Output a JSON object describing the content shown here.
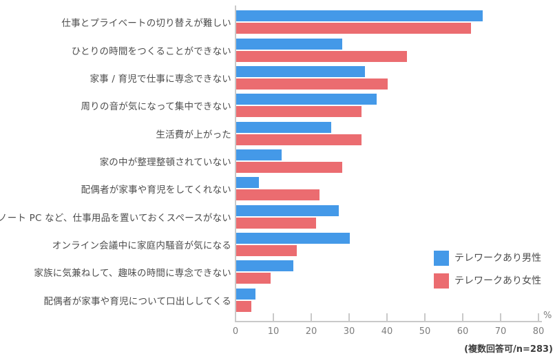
{
  "chart_data": {
    "type": "bar",
    "orientation": "horizontal",
    "title": "",
    "xlabel": "",
    "ylabel": "",
    "unit": "%",
    "xlim": [
      0,
      80
    ],
    "x_ticks": [
      0,
      10,
      20,
      30,
      40,
      50,
      60,
      70,
      80
    ],
    "grid": false,
    "legend_position": "inside-right-middle",
    "footnote": "(複数回答可/n=283)",
    "categories": [
      "仕事とプライベートの切り替えが難しい",
      "ひとりの時間をつくることができない",
      "家事 / 育児で仕事に専念できない",
      "周りの音が気になって集中できない",
      "生活費が上がった",
      "家の中が整理整頓されていない",
      "配偶者が家事や育児をしてくれない",
      "ノート PC など、仕事用品を置いておくスペースがない",
      "オンライン会議中に家庭内騒音が気になる",
      "家族に気兼ねして、趣味の時間に専念できない",
      "配偶者が家事や育児について口出ししてくる"
    ],
    "series": [
      {
        "name": "テレワークあり男性",
        "color": "#4499e8",
        "values": [
          65,
          28,
          34,
          37,
          25,
          12,
          6,
          27,
          30,
          15,
          5
        ]
      },
      {
        "name": "テレワークあり女性",
        "color": "#eb6c70",
        "values": [
          62,
          45,
          40,
          33,
          33,
          28,
          22,
          21,
          16,
          9,
          4
        ]
      }
    ]
  },
  "colors": {
    "axis": "#c9c9c9",
    "category_label": "#4d4d4d",
    "tick_label": "#7d7d7d",
    "footnote": "#3d3d3d",
    "background": "#ffffff"
  }
}
